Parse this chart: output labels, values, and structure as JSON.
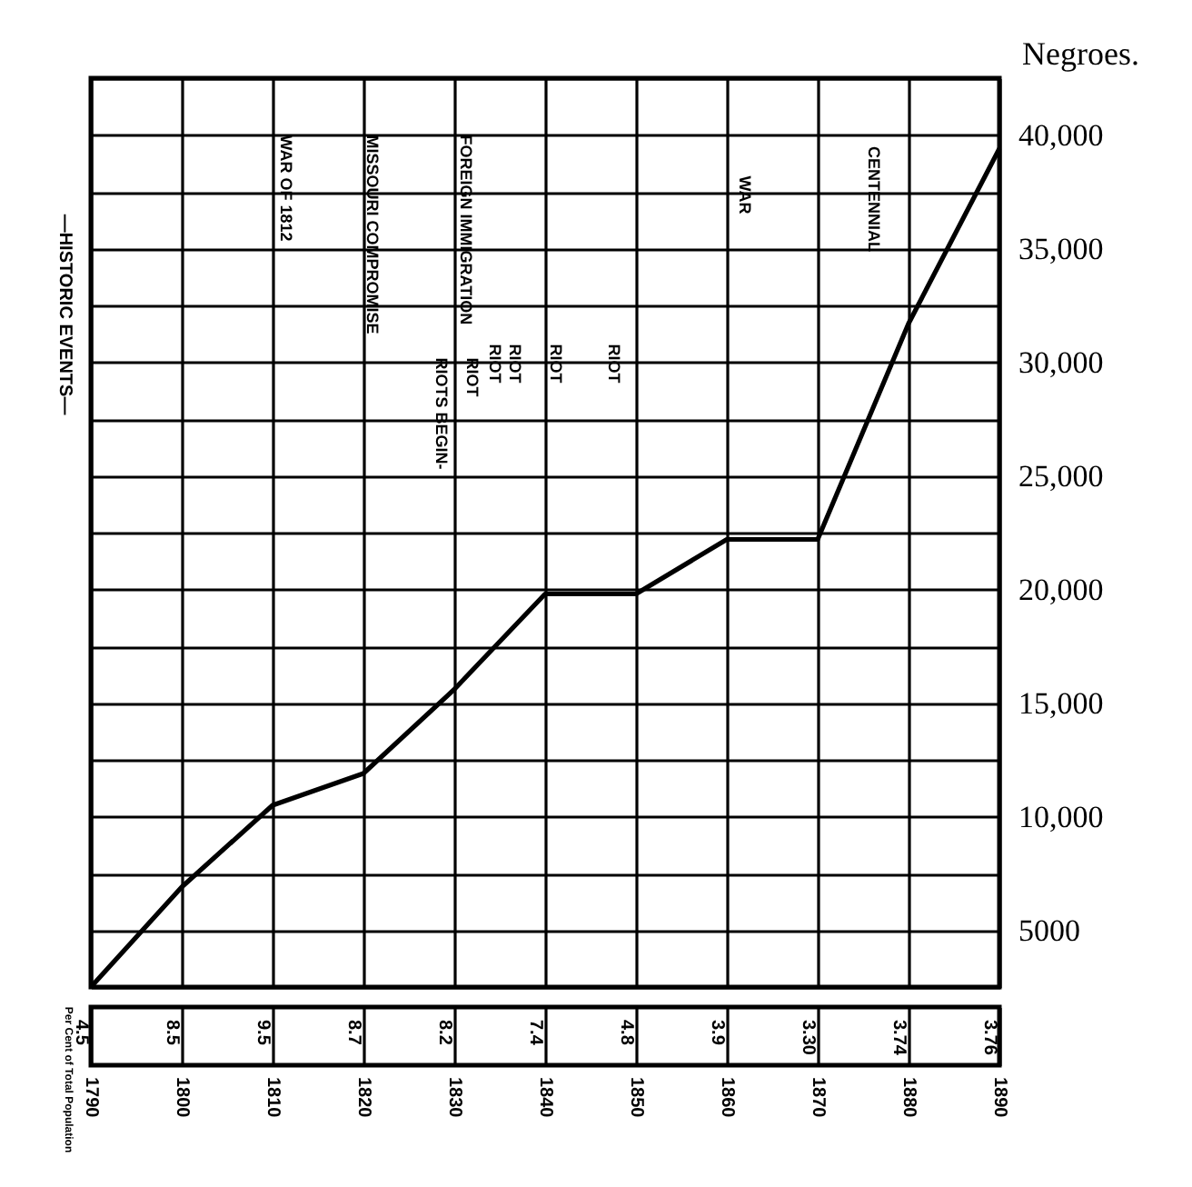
{
  "chart_data": {
    "type": "line",
    "ylabel": "Negroes.",
    "x": [
      1790,
      1800,
      1810,
      1820,
      1830,
      1840,
      1850,
      1860,
      1870,
      1880,
      1890
    ],
    "series": [
      {
        "color": "#000000",
        "values": [
          2500,
          6900,
          10500,
          11900,
          15600,
          19800,
          19800,
          22200,
          22200,
          31700,
          39400
        ]
      }
    ],
    "xlim": [
      1790,
      1890
    ],
    "xticks": [
      1790,
      1800,
      1810,
      1820,
      1830,
      1840,
      1850,
      1860,
      1870,
      1880,
      1890
    ],
    "ylim": [
      2500,
      42500
    ],
    "yticks": [
      {
        "value": 2500,
        "label": null
      },
      5000,
      {
        "value": 7500,
        "label": null
      },
      {
        "value": 10000,
        "label": "10,000"
      },
      {
        "value": 12500,
        "label": null
      },
      {
        "value": 15000,
        "label": "15,000"
      },
      {
        "value": 17500,
        "label": null
      },
      {
        "value": 20000,
        "label": "20,000"
      },
      {
        "value": 22500,
        "label": null
      },
      {
        "value": 25000,
        "label": "25,000"
      },
      {
        "value": 27500,
        "label": null
      },
      {
        "value": 30000,
        "label": "30,000"
      },
      {
        "value": 32500,
        "label": null
      },
      {
        "value": 35000,
        "label": "35,000"
      },
      {
        "value": 37500,
        "label": null
      },
      {
        "value": 40000,
        "label": "40,000"
      },
      {
        "value": 42500,
        "label": null
      }
    ],
    "grid": true,
    "marker": "none",
    "line_style": "solid",
    "annotations": [
      "—HISTORIC EVENTS—",
      "Per Cent of Total Population",
      "WAR OF 1812",
      "MISSOURI COMPROMISE",
      "FOREIGN IMMIGRATION",
      "RIOTS BEGIN-",
      "RIOT",
      "RIOT",
      "RIOT",
      "RIOT",
      "RIOT",
      "WAR",
      "CENTENNIAL",
      {
        "text": "4.5",
        "x": 1790
      },
      {
        "text": "8.5",
        "x": 1800
      },
      {
        "text": "9.5",
        "x": 1810
      },
      {
        "text": "8.7",
        "x": 1820
      },
      {
        "text": "8.2",
        "x": 1830
      },
      {
        "text": "7.4",
        "x": 1840
      },
      {
        "text": "4.8",
        "x": 1850
      },
      {
        "text": "3.9",
        "x": 1860
      },
      {
        "text": "3.30",
        "x": 1870
      },
      {
        "text": "3.74",
        "x": 1880
      },
      {
        "text": "3.76",
        "x": 1890
      }
    ]
  }
}
